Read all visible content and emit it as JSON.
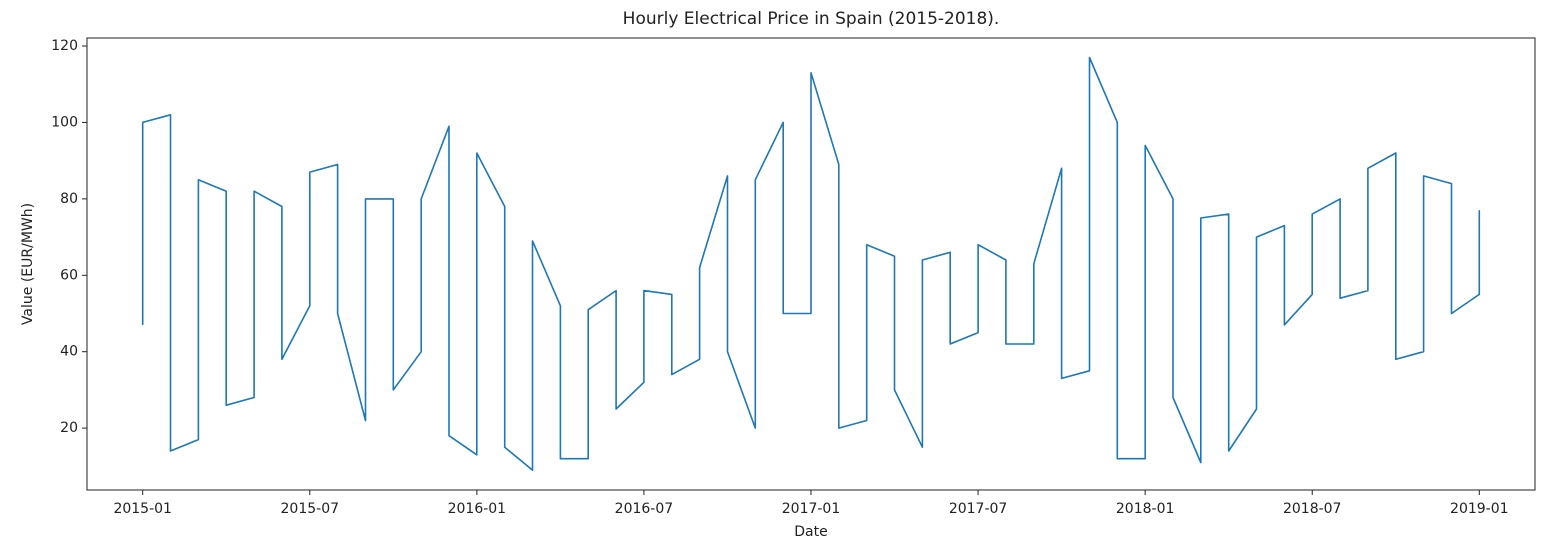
{
  "chart_data": {
    "type": "line",
    "title": "Hourly Electrical Price in Spain (2015-2018).",
    "x_label": "Date",
    "y_label": "Value (EUR/MWh)",
    "x": [
      "2015-01",
      "2015-01",
      "2015-02",
      "2015-02",
      "2015-03",
      "2015-03",
      "2015-04",
      "2015-04",
      "2015-05",
      "2015-05",
      "2015-06",
      "2015-06",
      "2015-07",
      "2015-07",
      "2015-08",
      "2015-08",
      "2015-09",
      "2015-09",
      "2015-10",
      "2015-10",
      "2015-11",
      "2015-11",
      "2015-12",
      "2015-12",
      "2016-01",
      "2016-01",
      "2016-02",
      "2016-02",
      "2016-03",
      "2016-03",
      "2016-04",
      "2016-04",
      "2016-05",
      "2016-05",
      "2016-06",
      "2016-06",
      "2016-07",
      "2016-07",
      "2016-08",
      "2016-08",
      "2016-09",
      "2016-09",
      "2016-10",
      "2016-10",
      "2016-11",
      "2016-11",
      "2016-12",
      "2016-12",
      "2017-01",
      "2017-01",
      "2017-02",
      "2017-02",
      "2017-03",
      "2017-03",
      "2017-04",
      "2017-04",
      "2017-05",
      "2017-05",
      "2017-06",
      "2017-06",
      "2017-07",
      "2017-07",
      "2017-08",
      "2017-08",
      "2017-09",
      "2017-09",
      "2017-10",
      "2017-10",
      "2017-11",
      "2017-11",
      "2017-12",
      "2017-12",
      "2018-01",
      "2018-01",
      "2018-02",
      "2018-02",
      "2018-03",
      "2018-03",
      "2018-04",
      "2018-04",
      "2018-05",
      "2018-05",
      "2018-06",
      "2018-06",
      "2018-07",
      "2018-07",
      "2018-08",
      "2018-08",
      "2018-09",
      "2018-09",
      "2018-10",
      "2018-10",
      "2018-11",
      "2018-11",
      "2018-12",
      "2018-12",
      "2019-01",
      "2019-01"
    ],
    "series": [
      {
        "name": "price",
        "color": "#1f77b4",
        "values": [
          47,
          100,
          102,
          14,
          17,
          85,
          82,
          26,
          28,
          82,
          78,
          38,
          52,
          87,
          89,
          50,
          22,
          80,
          80,
          30,
          40,
          80,
          99,
          18,
          13,
          92,
          78,
          15,
          9,
          69,
          52,
          12,
          12,
          51,
          56,
          25,
          32,
          56,
          55,
          34,
          38,
          62,
          86,
          40,
          20,
          85,
          100,
          50,
          50,
          113,
          89,
          20,
          22,
          68,
          65,
          30,
          15,
          64,
          66,
          42,
          45,
          68,
          64,
          42,
          42,
          63,
          88,
          33,
          35,
          117,
          100,
          12,
          12,
          94,
          80,
          28,
          11,
          75,
          76,
          14,
          25,
          70,
          73,
          47,
          55,
          76,
          80,
          54,
          56,
          88,
          92,
          38,
          40,
          86,
          84,
          50,
          55,
          77
        ]
      }
    ],
    "xlim": [
      "2014-11",
      "2019-03"
    ],
    "xticks": [
      "2015-01",
      "2015-07",
      "2016-01",
      "2016-07",
      "2017-01",
      "2017-07",
      "2018-01",
      "2018-07",
      "2019-01"
    ],
    "ylim": [
      3.8,
      122.1
    ],
    "yticks": [
      20,
      40,
      60,
      80,
      100,
      120
    ],
    "grid": false
  }
}
